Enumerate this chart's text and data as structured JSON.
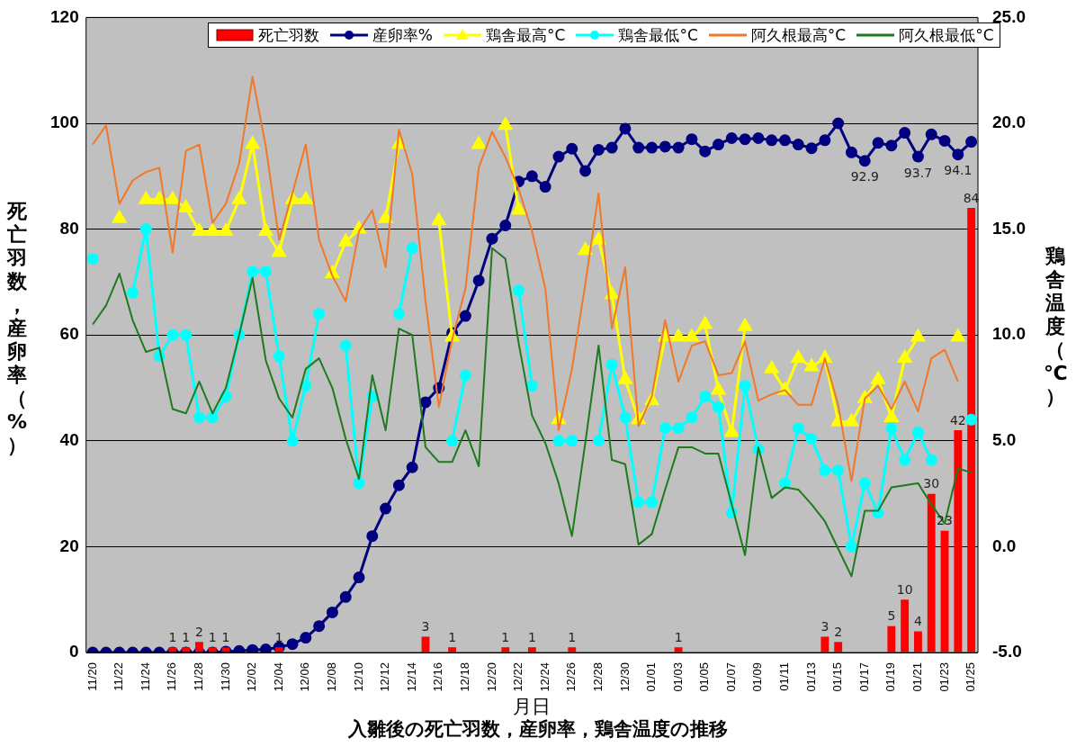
{
  "chart_data": {
    "type": "bar",
    "title": "入雛後の死亡羽数，産卵率，鶏舎温度の推移",
    "xlabel": "月日",
    "ylabel": "死亡羽数，産卵率（%）",
    "y2label": "鶏舎温度（℃）",
    "categories": [
      "11/20",
      null,
      "11/22",
      null,
      "11/24",
      null,
      "11/26",
      null,
      "11/28",
      null,
      "11/30",
      null,
      "12/02",
      null,
      "12/04",
      null,
      "12/06",
      null,
      "12/08",
      null,
      "12/10",
      null,
      "12/12",
      null,
      "12/14",
      null,
      "12/16",
      null,
      "12/18",
      null,
      "12/20",
      null,
      "12/22",
      null,
      "12/24",
      null,
      "12/26",
      null,
      "12/28",
      null,
      "12/30",
      null,
      "01/01",
      null,
      "01/03",
      null,
      "01/05",
      null,
      "01/07",
      null,
      "01/09",
      null,
      "01/11",
      null,
      "01/13",
      null,
      "01/15",
      null,
      "01/17",
      null,
      "01/19",
      null,
      "01/21",
      null,
      "01/23",
      null,
      "01/25"
    ],
    "ylim": [
      0,
      120
    ],
    "yticks": [
      0,
      20,
      40,
      60,
      80,
      100,
      120
    ],
    "y2lim": [
      -5,
      25
    ],
    "y2ticks": [
      {
        "value": -5,
        "label": "-5.0"
      },
      {
        "value": 0,
        "label": "0.0"
      },
      {
        "value": 5,
        "label": "5.0"
      },
      {
        "value": 10,
        "label": "10.0"
      },
      {
        "value": 15,
        "label": "15.0"
      },
      {
        "value": 20,
        "label": "20.0"
      },
      {
        "value": 25,
        "label": "25.0"
      }
    ],
    "grid": "y",
    "legend": "top",
    "series": [
      {
        "name": "死亡羽数",
        "color": "#ff0000",
        "values": [
          0,
          0,
          0,
          0,
          0,
          0,
          1,
          1,
          2,
          1,
          1,
          0,
          0,
          0,
          1,
          0,
          0,
          0,
          0,
          0,
          0,
          0,
          0,
          0,
          0,
          3,
          0,
          1,
          0,
          0,
          0,
          1,
          0,
          1,
          0,
          0,
          1,
          0,
          0,
          0,
          0,
          0,
          0,
          0,
          1,
          0,
          0,
          0,
          0,
          0,
          0,
          0,
          0,
          0,
          0,
          3,
          2,
          0,
          0,
          0,
          5,
          10,
          4,
          30,
          23,
          42,
          84
        ],
        "value_labels": [
          null,
          null,
          null,
          null,
          null,
          null,
          "1",
          "1",
          "2",
          "1",
          "1",
          null,
          null,
          null,
          "1",
          null,
          null,
          null,
          null,
          null,
          null,
          null,
          null,
          null,
          null,
          "3",
          null,
          "1",
          null,
          null,
          null,
          "1",
          null,
          "1",
          null,
          null,
          "1",
          null,
          null,
          null,
          null,
          null,
          null,
          null,
          "1",
          null,
          null,
          null,
          null,
          null,
          null,
          null,
          null,
          null,
          null,
          "3",
          "2",
          null,
          null,
          null,
          "5",
          "10",
          "4",
          "30",
          "23",
          "42",
          "84"
        ]
      },
      {
        "name": "産卵率%",
        "type": "line",
        "marker": "circle",
        "color": "#000080",
        "values": [
          0,
          0,
          0,
          0,
          0,
          0,
          0,
          0,
          0,
          0,
          0.2,
          0.3,
          0.5,
          0.6,
          1,
          1.6,
          2.8,
          5,
          7.6,
          10.5,
          14.2,
          22,
          27.2,
          31.6,
          35,
          47.3,
          50,
          60.4,
          63.6,
          70.3,
          78.2,
          80.7,
          89,
          90,
          88,
          93.7,
          95.2,
          91,
          95,
          95.4,
          99,
          95.4,
          95.4,
          95.6,
          95.4,
          97,
          94.7,
          96,
          97.2,
          97,
          97.2,
          96.8,
          96.8,
          96,
          95.3,
          96.8,
          100,
          94.5,
          92.9,
          96.3,
          95.8,
          98.2,
          93.7,
          97.9,
          96.7,
          94.1,
          96.5
        ],
        "value_labels": [
          null,
          null,
          null,
          null,
          null,
          null,
          null,
          null,
          null,
          null,
          null,
          null,
          null,
          null,
          null,
          null,
          null,
          null,
          null,
          null,
          null,
          null,
          null,
          null,
          null,
          null,
          null,
          null,
          null,
          null,
          null,
          null,
          null,
          null,
          null,
          null,
          null,
          null,
          null,
          null,
          null,
          null,
          null,
          null,
          null,
          null,
          null,
          null,
          null,
          null,
          null,
          null,
          null,
          null,
          null,
          null,
          null,
          null,
          "92.9",
          null,
          null,
          null,
          "93.7",
          null,
          null,
          "94.1",
          null
        ]
      },
      {
        "name": "鶏舎最高°C",
        "type": "line",
        "marker": "triangle",
        "axis": "y2",
        "color": "#ffff00",
        "values": [
          null,
          null,
          15.5,
          null,
          16.4,
          16.4,
          16.4,
          16.0,
          14.9,
          14.9,
          14.9,
          16.4,
          19.0,
          14.9,
          13.9,
          16.4,
          16.4,
          null,
          12.9,
          14.4,
          15.0,
          null,
          15.5,
          19.0,
          null,
          null,
          15.4,
          9.9,
          null,
          19.0,
          null,
          19.9,
          15.9,
          null,
          null,
          6.0,
          null,
          14.0,
          14.5,
          11.9,
          7.9,
          6.0,
          6.9,
          9.9,
          9.9,
          9.9,
          10.5,
          7.4,
          5.4,
          10.4,
          null,
          8.4,
          7.4,
          8.9,
          8.5,
          8.9,
          5.9,
          5.9,
          7.0,
          7.9,
          6.1,
          8.9,
          9.9,
          null,
          null,
          9.9,
          null
        ]
      },
      {
        "name": "鶏舎最低°C",
        "type": "line",
        "marker": "circle",
        "axis": "y2",
        "color": "#00ffff",
        "values": [
          13.6,
          null,
          null,
          12.0,
          15.0,
          9.0,
          10.0,
          10.0,
          6.1,
          6.1,
          7.1,
          10.0,
          13.0,
          13.0,
          9.0,
          5.0,
          7.6,
          11.0,
          null,
          9.5,
          3.0,
          7.1,
          null,
          11.0,
          14.1,
          null,
          null,
          5.0,
          8.1,
          null,
          null,
          null,
          12.1,
          7.6,
          null,
          5.0,
          5.0,
          null,
          5.0,
          8.6,
          6.1,
          2.1,
          2.1,
          5.6,
          5.6,
          6.1,
          7.1,
          6.6,
          1.6,
          7.6,
          4.6,
          null,
          3.0,
          5.6,
          5.1,
          3.6,
          3.6,
          0.0,
          3.0,
          1.6,
          5.6,
          4.1,
          5.4,
          4.1,
          null,
          null,
          6.0
        ]
      },
      {
        "name": "阿久根最高°C",
        "type": "line",
        "marker": "none",
        "axis": "y2",
        "color": "#f07828",
        "values": [
          19.0,
          19.9,
          16.2,
          17.3,
          17.7,
          17.9,
          13.9,
          18.7,
          19.0,
          15.3,
          16.2,
          18.1,
          22.2,
          18.9,
          14.5,
          16.7,
          19.0,
          14.5,
          12.8,
          11.6,
          14.9,
          15.9,
          13.2,
          19.7,
          17.6,
          11.6,
          6.6,
          9.8,
          12.2,
          17.9,
          19.6,
          18.4,
          16.9,
          14.9,
          12.2,
          5.5,
          8.4,
          12.4,
          16.7,
          10.3,
          13.2,
          5.7,
          7.1,
          10.7,
          7.8,
          9.5,
          9.7,
          8.1,
          8.2,
          9.7,
          6.9,
          7.2,
          7.4,
          6.7,
          6.7,
          8.9,
          6.7,
          3.1,
          7.0,
          7.6,
          6.5,
          7.8,
          6.4,
          8.9,
          9.3,
          7.8,
          null
        ]
      },
      {
        "name": "阿久根最低°C",
        "type": "line",
        "marker": "none",
        "axis": "y2",
        "color": "#1e7a1e",
        "values": [
          10.5,
          11.4,
          12.9,
          10.7,
          9.2,
          9.4,
          6.5,
          6.3,
          7.8,
          6.3,
          7.5,
          10.0,
          12.7,
          8.8,
          7.0,
          6.1,
          8.4,
          8.9,
          7.5,
          5.1,
          3.2,
          8.1,
          5.5,
          10.3,
          10.0,
          4.7,
          4.0,
          4.0,
          5.5,
          3.8,
          14.1,
          13.6,
          9.6,
          6.2,
          4.9,
          3.0,
          0.5,
          4.9,
          9.5,
          4.1,
          3.9,
          0.1,
          0.6,
          2.7,
          4.7,
          4.7,
          4.4,
          4.4,
          2.0,
          -0.4,
          4.7,
          2.3,
          2.8,
          2.7,
          2.0,
          1.2,
          -0.1,
          -1.4,
          1.7,
          1.7,
          2.8,
          2.9,
          3.0,
          2.0,
          1.1,
          3.7,
          3.5
        ]
      }
    ]
  }
}
